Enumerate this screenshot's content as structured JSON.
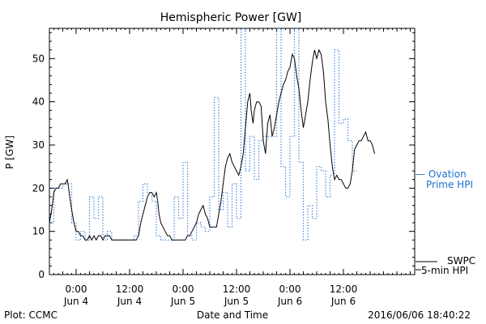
{
  "colors": {
    "swpc": "#000000",
    "ovation": "#1f6fd1"
  },
  "chart_data": {
    "type": "line",
    "title": "Hemispheric Power [GW]",
    "xlabel": "Date and Time",
    "ylabel": "P [GW]",
    "ylim": [
      0,
      57
    ],
    "x_unit": "hours since 2016-06-03 18:00",
    "xlim": [
      0,
      82
    ],
    "y_ticks": [
      0,
      10,
      20,
      30,
      40,
      50
    ],
    "x_ticks": [
      {
        "x": 6,
        "time": "0:00",
        "date": "Jun 4"
      },
      {
        "x": 18,
        "time": "12:00",
        "date": "Jun 4"
      },
      {
        "x": 30,
        "time": "0:00",
        "date": "Jun 5"
      },
      {
        "x": 42,
        "time": "12:00",
        "date": "Jun 5"
      },
      {
        "x": 54,
        "time": "0:00",
        "date": "Jun 6"
      },
      {
        "x": 66,
        "time": "12:00",
        "date": "Jun 6"
      }
    ],
    "footer_left": "Plot: CCMC",
    "footer_right": "2016/06/06 18:40:22",
    "series": [
      {
        "name": "SWPC 5-min HPI",
        "legend_line1": "SWPC",
        "legend_line2": "5-min HPI",
        "style": "solid",
        "points": [
          [
            0,
            12
          ],
          [
            0.5,
            15
          ],
          [
            1,
            19
          ],
          [
            1.5,
            20
          ],
          [
            2,
            20
          ],
          [
            2.5,
            21
          ],
          [
            3,
            21
          ],
          [
            3.5,
            21
          ],
          [
            4,
            22
          ],
          [
            4.3,
            20
          ],
          [
            4.7,
            17
          ],
          [
            5,
            15
          ],
          [
            5.5,
            12
          ],
          [
            6,
            10
          ],
          [
            6.5,
            10
          ],
          [
            7,
            9
          ],
          [
            7.5,
            9
          ],
          [
            8,
            8
          ],
          [
            8.5,
            8
          ],
          [
            9,
            9
          ],
          [
            9.5,
            8
          ],
          [
            10,
            9
          ],
          [
            10.5,
            8
          ],
          [
            11,
            9
          ],
          [
            11.5,
            9
          ],
          [
            12,
            8
          ],
          [
            12.5,
            9
          ],
          [
            13,
            9
          ],
          [
            13.5,
            9
          ],
          [
            14,
            8
          ],
          [
            14.5,
            8
          ],
          [
            15,
            8
          ],
          [
            15.5,
            8
          ],
          [
            16,
            8
          ],
          [
            16.5,
            8
          ],
          [
            17,
            8
          ],
          [
            17.5,
            8
          ],
          [
            18,
            8
          ],
          [
            18.5,
            8
          ],
          [
            19,
            8
          ],
          [
            19.5,
            8
          ],
          [
            20,
            9
          ],
          [
            20.5,
            12
          ],
          [
            21,
            14
          ],
          [
            21.5,
            16
          ],
          [
            22,
            18
          ],
          [
            22.5,
            19
          ],
          [
            23,
            19
          ],
          [
            23.5,
            18
          ],
          [
            24,
            19
          ],
          [
            24.3,
            17
          ],
          [
            24.6,
            14
          ],
          [
            25,
            12
          ],
          [
            25.5,
            11
          ],
          [
            26,
            10
          ],
          [
            26.5,
            9
          ],
          [
            27,
            9
          ],
          [
            27.5,
            8
          ],
          [
            28,
            8
          ],
          [
            28.5,
            8
          ],
          [
            29,
            8
          ],
          [
            29.5,
            8
          ],
          [
            30,
            8
          ],
          [
            30.5,
            8
          ],
          [
            31,
            9
          ],
          [
            31.5,
            9
          ],
          [
            32,
            10
          ],
          [
            32.5,
            11
          ],
          [
            33,
            12
          ],
          [
            33.5,
            14
          ],
          [
            34,
            15
          ],
          [
            34.5,
            16
          ],
          [
            35,
            14
          ],
          [
            35.5,
            13
          ],
          [
            36,
            11
          ],
          [
            36.5,
            11
          ],
          [
            37,
            11
          ],
          [
            37.5,
            11
          ],
          [
            38,
            14
          ],
          [
            38.5,
            17
          ],
          [
            39,
            21
          ],
          [
            39.5,
            25
          ],
          [
            40,
            27
          ],
          [
            40.5,
            28
          ],
          [
            41,
            26
          ],
          [
            41.5,
            25
          ],
          [
            42,
            24
          ],
          [
            42.5,
            23
          ],
          [
            43,
            25
          ],
          [
            43.5,
            28
          ],
          [
            44,
            34
          ],
          [
            44.5,
            40
          ],
          [
            45,
            42
          ],
          [
            45.3,
            38
          ],
          [
            45.7,
            35
          ],
          [
            46,
            38
          ],
          [
            46.5,
            40
          ],
          [
            47,
            40
          ],
          [
            47.5,
            39
          ],
          [
            48,
            31
          ],
          [
            48.5,
            28
          ],
          [
            49,
            35
          ],
          [
            49.5,
            37
          ],
          [
            50,
            32
          ],
          [
            50.5,
            34
          ],
          [
            51,
            37
          ],
          [
            51.5,
            40
          ],
          [
            52,
            42
          ],
          [
            52.5,
            44
          ],
          [
            53,
            45
          ],
          [
            53.5,
            47
          ],
          [
            54,
            48
          ],
          [
            54.5,
            51
          ],
          [
            55,
            50
          ],
          [
            55.5,
            46
          ],
          [
            56,
            43
          ],
          [
            56.5,
            38
          ],
          [
            57,
            34
          ],
          [
            57.5,
            37
          ],
          [
            58,
            40
          ],
          [
            58.5,
            45
          ],
          [
            59,
            49
          ],
          [
            59.5,
            52
          ],
          [
            60,
            50
          ],
          [
            60.5,
            52
          ],
          [
            61,
            51
          ],
          [
            61.5,
            47
          ],
          [
            62,
            40
          ],
          [
            62.5,
            36
          ],
          [
            63,
            30
          ],
          [
            63.5,
            25
          ],
          [
            64,
            22
          ],
          [
            64.5,
            23
          ],
          [
            65,
            22
          ],
          [
            65.5,
            22
          ],
          [
            66,
            21
          ],
          [
            66.5,
            20
          ],
          [
            67,
            20
          ],
          [
            67.5,
            21
          ],
          [
            68,
            24
          ],
          [
            68.5,
            29
          ],
          [
            69,
            30
          ],
          [
            69.5,
            31
          ],
          [
            70,
            31
          ],
          [
            70.5,
            32
          ],
          [
            71,
            33
          ],
          [
            71.5,
            31
          ],
          [
            72,
            31
          ],
          [
            72.5,
            30
          ],
          [
            73,
            28
          ]
        ]
      },
      {
        "name": "Ovation Prime HPI",
        "legend_line1": "— Ovation",
        "legend_line2": "Prime HPI",
        "style": "dotted-step",
        "points": [
          [
            0,
            12
          ],
          [
            1,
            20
          ],
          [
            2,
            20
          ],
          [
            3,
            21
          ],
          [
            4,
            21
          ],
          [
            5,
            12
          ],
          [
            6,
            8
          ],
          [
            7,
            10
          ],
          [
            8,
            8
          ],
          [
            9,
            18
          ],
          [
            10,
            13
          ],
          [
            11,
            18
          ],
          [
            12,
            8
          ],
          [
            13,
            10
          ],
          [
            14,
            8
          ],
          [
            15,
            8
          ],
          [
            16,
            8
          ],
          [
            17,
            8
          ],
          [
            18,
            8
          ],
          [
            19,
            9
          ],
          [
            20,
            17
          ],
          [
            21,
            21
          ],
          [
            22,
            19
          ],
          [
            23,
            17
          ],
          [
            24,
            9
          ],
          [
            25,
            8
          ],
          [
            26,
            8
          ],
          [
            27,
            8
          ],
          [
            28,
            18
          ],
          [
            29,
            13
          ],
          [
            30,
            26
          ],
          [
            31,
            9
          ],
          [
            32,
            8
          ],
          [
            33,
            12
          ],
          [
            34,
            11
          ],
          [
            35,
            10
          ],
          [
            36,
            18
          ],
          [
            37,
            41
          ],
          [
            38,
            15
          ],
          [
            39,
            19
          ],
          [
            40,
            11
          ],
          [
            41,
            21
          ],
          [
            42,
            13
          ],
          [
            43,
            57
          ],
          [
            44,
            24
          ],
          [
            45,
            32
          ],
          [
            46,
            22
          ],
          [
            47,
            31
          ],
          [
            48,
            32
          ],
          [
            49,
            32
          ],
          [
            50,
            32
          ],
          [
            51,
            57
          ],
          [
            52,
            25
          ],
          [
            53,
            18
          ],
          [
            54,
            32
          ],
          [
            55,
            57
          ],
          [
            56,
            26
          ],
          [
            57,
            8
          ],
          [
            58,
            16
          ],
          [
            59,
            13
          ],
          [
            60,
            25
          ],
          [
            61,
            24
          ],
          [
            62,
            18
          ],
          [
            63,
            23
          ],
          [
            64,
            52
          ],
          [
            65,
            35
          ],
          [
            66,
            36
          ],
          [
            67,
            31
          ],
          [
            68,
            24
          ]
        ]
      }
    ]
  }
}
